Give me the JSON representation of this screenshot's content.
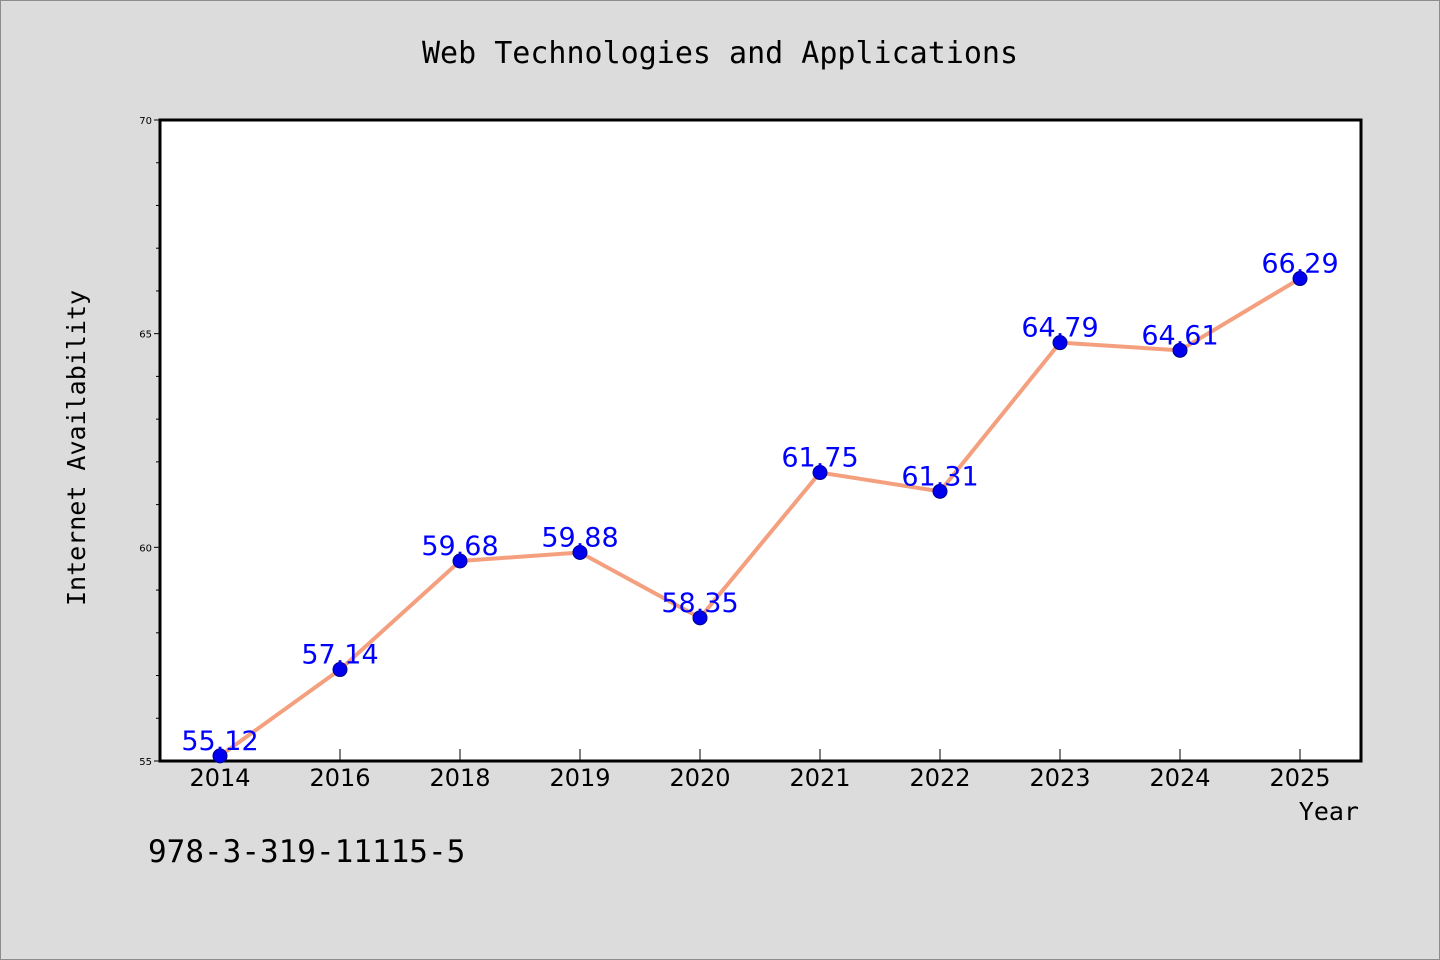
{
  "chart_data": {
    "type": "line",
    "title": "Web Technologies and Applications",
    "xlabel": "Year",
    "ylabel": "Internet Availability",
    "categories": [
      "2014",
      "2016",
      "2018",
      "2019",
      "2020",
      "2021",
      "2022",
      "2023",
      "2024",
      "2025"
    ],
    "series": [
      {
        "values": [
          55.12,
          57.14,
          59.68,
          59.88,
          58.35,
          61.75,
          61.31,
          64.79,
          64.61,
          66.29
        ],
        "labels": [
          "55.12",
          "57.14",
          "59.68",
          "59.88",
          "58.35",
          "61.75",
          "61.31",
          "64.79",
          "64.61",
          "66.29"
        ]
      }
    ],
    "ylim": [
      55,
      70
    ],
    "yticks": [
      "55",
      "60",
      "65",
      "70"
    ],
    "grid": false,
    "colors": {
      "line": "#f4a07f",
      "marker": "#0000ee",
      "label": "#0000ff",
      "plot_bg": "#ffffff",
      "figure_bg": "#dcdcdc"
    }
  },
  "footer": {
    "isbn": "978-3-319-11115-5"
  }
}
